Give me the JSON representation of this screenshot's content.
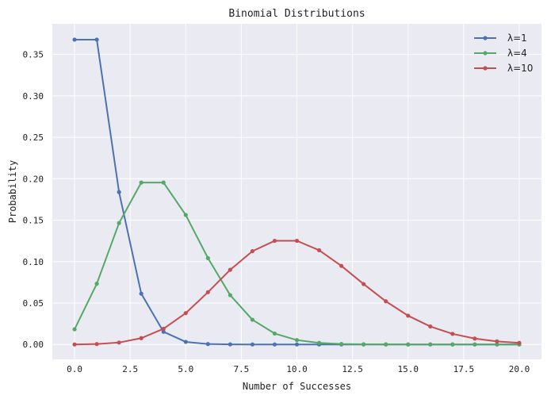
{
  "chart_data": {
    "type": "line",
    "title": "Binomial Distributions",
    "xlabel": "Number of Successes",
    "ylabel": "Probability",
    "xlim": [
      -1.0,
      21.0
    ],
    "ylim": [
      -0.018,
      0.387
    ],
    "x_ticks": [
      "0.0",
      "2.5",
      "5.0",
      "7.5",
      "10.0",
      "12.5",
      "15.0",
      "17.5",
      "20.0"
    ],
    "y_ticks": [
      "0.00",
      "0.05",
      "0.10",
      "0.15",
      "0.20",
      "0.25",
      "0.30",
      "0.35"
    ],
    "x": [
      0,
      1,
      2,
      3,
      4,
      5,
      6,
      7,
      8,
      9,
      10,
      11,
      12,
      13,
      14,
      15,
      16,
      17,
      18,
      19,
      20
    ],
    "grid": true,
    "legend_position": "upper right",
    "background": "#eaeaf2",
    "series": [
      {
        "name": "λ=1",
        "color": "#4c72b0",
        "values": [
          0.3679,
          0.3679,
          0.1839,
          0.0613,
          0.0153,
          0.0031,
          0.0005,
          0.0001,
          0.0,
          0.0,
          0.0,
          0.0,
          0.0,
          0.0,
          0.0,
          0.0,
          0.0,
          0.0,
          0.0,
          0.0,
          0.0
        ]
      },
      {
        "name": "λ=4",
        "color": "#55a868",
        "values": [
          0.0183,
          0.0733,
          0.1465,
          0.1954,
          0.1954,
          0.1563,
          0.1042,
          0.0595,
          0.0298,
          0.0132,
          0.0053,
          0.0019,
          0.0006,
          0.0002,
          0.0001,
          0.0,
          0.0,
          0.0,
          0.0,
          0.0,
          0.0
        ]
      },
      {
        "name": "λ=10",
        "color": "#c44e52",
        "values": [
          0.0,
          0.0005,
          0.0023,
          0.0076,
          0.0189,
          0.0378,
          0.0631,
          0.0901,
          0.1126,
          0.1251,
          0.1251,
          0.1137,
          0.0948,
          0.0729,
          0.0521,
          0.0347,
          0.0217,
          0.0128,
          0.0071,
          0.0037,
          0.0019
        ]
      }
    ]
  }
}
